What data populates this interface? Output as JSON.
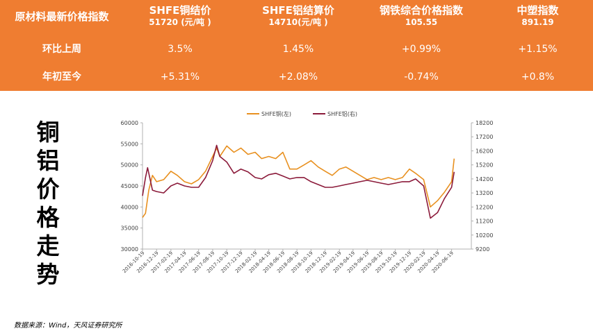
{
  "table": {
    "header": {
      "col0": "原材料最新价格指数",
      "col1": "SHFE铜结价",
      "col1_sub": "51720 (元/吨 )",
      "col2": "SHFE铝结算价",
      "col2_sub": "14710(元/吨 )",
      "col3": "钢铁综合价格指数",
      "col3_sub": "105.55",
      "col4": "中塑指数",
      "col4_sub": "891.19"
    },
    "rows": [
      {
        "label": "环比上周",
        "values": [
          "3.5%",
          "1.45%",
          "+0.99%",
          "+1.15%"
        ]
      },
      {
        "label": "年初至今",
        "values": [
          "+5.31%",
          "+2.08%",
          "-0.74%",
          "+0.8%"
        ]
      }
    ]
  },
  "side_title": [
    "铜",
    "铝",
    "价",
    "格",
    "走",
    "势"
  ],
  "source_note": "数据来源：Wind，天风证券研究所",
  "colors": {
    "banner": "#ef7d31",
    "copper": "#e8901f",
    "aluminum": "#8b1a3a"
  },
  "chart_data": {
    "type": "line",
    "legend_position": "top-center",
    "grid": false,
    "x_ticks": [
      "2016-10-19",
      "2016-12-19",
      "2017-02-19",
      "2017-04-19",
      "2017-06-19",
      "2017-08-19",
      "2017-10-19",
      "2017-12-19",
      "2018-02-19",
      "2018-04-19",
      "2018-06-19",
      "2018-08-19",
      "2018-10-19",
      "2018-12-19",
      "2019-02-19",
      "2019-04-19",
      "2019-06-19",
      "2019-08-19",
      "2019-10-19",
      "2019-12-19",
      "2020-02-19",
      "2020-04-19",
      "2020-06-19"
    ],
    "y_left": {
      "ticks": [
        30000,
        35000,
        40000,
        45000,
        50000,
        55000,
        60000
      ],
      "range": [
        30000,
        60000
      ]
    },
    "y_right": {
      "ticks": [
        9200,
        10200,
        11200,
        12200,
        13200,
        14200,
        15200,
        16200,
        17200,
        18200
      ],
      "range": [
        9200,
        18200
      ]
    },
    "series": [
      {
        "name": "SHFE铜(左)",
        "axis": "left",
        "x": [
          "2016-10-19",
          "2016-11-01",
          "2016-11-15",
          "2016-12-01",
          "2016-12-19",
          "2017-01-19",
          "2017-02-19",
          "2017-03-19",
          "2017-04-19",
          "2017-05-19",
          "2017-06-19",
          "2017-07-19",
          "2017-08-19",
          "2017-09-05",
          "2017-09-19",
          "2017-10-19",
          "2017-11-19",
          "2017-12-19",
          "2018-01-19",
          "2018-02-19",
          "2018-03-19",
          "2018-04-19",
          "2018-05-19",
          "2018-06-19",
          "2018-07-19",
          "2018-08-19",
          "2018-09-19",
          "2018-10-19",
          "2018-11-19",
          "2018-12-19",
          "2019-01-19",
          "2019-02-19",
          "2019-03-19",
          "2019-04-19",
          "2019-05-19",
          "2019-06-19",
          "2019-07-19",
          "2019-08-19",
          "2019-09-19",
          "2019-10-19",
          "2019-11-19",
          "2019-12-19",
          "2020-01-15",
          "2020-02-19",
          "2020-03-19",
          "2020-04-19",
          "2020-05-19",
          "2020-06-19",
          "2020-06-30"
        ],
        "values": [
          37500,
          38500,
          44000,
          47500,
          46000,
          46500,
          48500,
          47500,
          46000,
          45500,
          46500,
          48500,
          52000,
          54000,
          52000,
          54500,
          53000,
          54000,
          52500,
          53000,
          51500,
          52000,
          51500,
          53000,
          49000,
          49000,
          50000,
          51000,
          49500,
          48500,
          47500,
          49000,
          49500,
          48500,
          47500,
          46500,
          47000,
          46500,
          47000,
          46500,
          47000,
          49000,
          48000,
          46500,
          40000,
          41500,
          43500,
          46000,
          51500
        ]
      },
      {
        "name": "SHFE铝(右)",
        "axis": "right",
        "x": [
          "2016-10-19",
          "2016-11-01",
          "2016-11-10",
          "2016-12-01",
          "2016-12-19",
          "2017-01-19",
          "2017-02-19",
          "2017-03-19",
          "2017-04-19",
          "2017-05-19",
          "2017-06-19",
          "2017-07-19",
          "2017-08-19",
          "2017-09-05",
          "2017-09-19",
          "2017-10-19",
          "2017-11-19",
          "2017-12-19",
          "2018-01-19",
          "2018-02-19",
          "2018-03-19",
          "2018-04-19",
          "2018-05-19",
          "2018-06-19",
          "2018-07-19",
          "2018-08-19",
          "2018-09-19",
          "2018-10-19",
          "2018-11-19",
          "2018-12-19",
          "2019-01-19",
          "2019-02-19",
          "2019-03-19",
          "2019-04-19",
          "2019-05-19",
          "2019-06-19",
          "2019-07-19",
          "2019-08-19",
          "2019-09-19",
          "2019-10-19",
          "2019-11-19",
          "2019-12-19",
          "2020-01-15",
          "2020-02-19",
          "2020-03-19",
          "2020-04-19",
          "2020-05-19",
          "2020-06-19",
          "2020-06-30"
        ],
        "values": [
          13000,
          14300,
          15000,
          13400,
          13300,
          13200,
          13700,
          13900,
          13700,
          13600,
          13600,
          14300,
          15500,
          16600,
          15800,
          15400,
          14600,
          14900,
          14700,
          14300,
          14200,
          14500,
          14600,
          14400,
          14200,
          14300,
          14300,
          14000,
          13800,
          13600,
          13600,
          13700,
          13800,
          13900,
          14000,
          14100,
          14000,
          13900,
          13800,
          13900,
          14000,
          14000,
          14200,
          13700,
          11400,
          11800,
          12800,
          13600,
          14700
        ]
      }
    ]
  }
}
